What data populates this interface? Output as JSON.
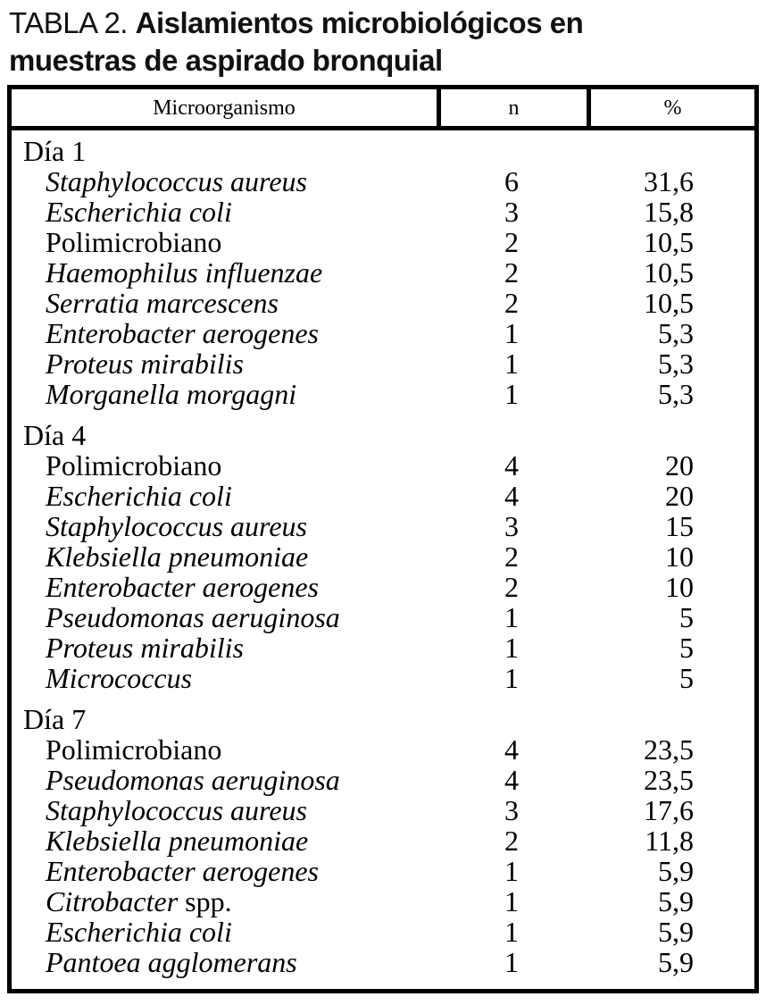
{
  "title": {
    "prefix": "TABLA 2.",
    "bold_line1": "Aislamientos microbiológicos en",
    "bold_line2": "muestras de aspirado bronquial"
  },
  "table": {
    "headers": {
      "microorganism": "Microorganismo",
      "count": "n",
      "percent": "%"
    },
    "sections": [
      {
        "label": "Día 1",
        "rows": [
          {
            "name_italic": "Staphylococcus aureus",
            "name_regular": "",
            "n": "6",
            "pct": "31,6"
          },
          {
            "name_italic": "Escherichia coli",
            "name_regular": "",
            "n": "3",
            "pct": "15,8"
          },
          {
            "name_italic": "",
            "name_regular": "Polimicrobiano",
            "n": "2",
            "pct": "10,5"
          },
          {
            "name_italic": "Haemophilus influenzae",
            "name_regular": "",
            "n": "2",
            "pct": "10,5"
          },
          {
            "name_italic": "Serratia marcescens",
            "name_regular": "",
            "n": "2",
            "pct": "10,5"
          },
          {
            "name_italic": "Enterobacter aerogenes",
            "name_regular": "",
            "n": "1",
            "pct": "5,3"
          },
          {
            "name_italic": "Proteus mirabilis",
            "name_regular": "",
            "n": "1",
            "pct": "5,3"
          },
          {
            "name_italic": "Morganella morgagni",
            "name_regular": "",
            "n": "1",
            "pct": "5,3"
          }
        ]
      },
      {
        "label": "Día 4",
        "rows": [
          {
            "name_italic": "",
            "name_regular": "Polimicrobiano",
            "n": "4",
            "pct": "20"
          },
          {
            "name_italic": "Escherichia coli",
            "name_regular": "",
            "n": "4",
            "pct": "20"
          },
          {
            "name_italic": "Staphylococcus aureus",
            "name_regular": "",
            "n": "3",
            "pct": "15"
          },
          {
            "name_italic": "Klebsiella pneumoniae",
            "name_regular": "",
            "n": "2",
            "pct": "10"
          },
          {
            "name_italic": "Enterobacter aerogenes",
            "name_regular": "",
            "n": "2",
            "pct": "10"
          },
          {
            "name_italic": "Pseudomonas aeruginosa",
            "name_regular": "",
            "n": "1",
            "pct": "5"
          },
          {
            "name_italic": "Proteus mirabilis",
            "name_regular": "",
            "n": "1",
            "pct": "5"
          },
          {
            "name_italic": "Micrococcus",
            "name_regular": "",
            "n": "1",
            "pct": "5"
          }
        ]
      },
      {
        "label": "Día 7",
        "rows": [
          {
            "name_italic": "",
            "name_regular": "Polimicrobiano",
            "n": "4",
            "pct": "23,5"
          },
          {
            "name_italic": "Pseudomonas aeruginosa",
            "name_regular": "",
            "n": "4",
            "pct": "23,5"
          },
          {
            "name_italic": "Staphylococcus aureus",
            "name_regular": "",
            "n": "3",
            "pct": "17,6"
          },
          {
            "name_italic": "Klebsiella pneumoniae",
            "name_regular": "",
            "n": "2",
            "pct": "11,8"
          },
          {
            "name_italic": "Enterobacter aerogenes",
            "name_regular": "",
            "n": "1",
            "pct": "5,9"
          },
          {
            "name_italic": "Citrobacter",
            "name_regular": " spp.",
            "n": "1",
            "pct": "5,9"
          },
          {
            "name_italic": "Escherichia coli",
            "name_regular": "",
            "n": "1",
            "pct": "5,9"
          },
          {
            "name_italic": "Pantoea agglomerans",
            "name_regular": "",
            "n": "1",
            "pct": "5,9"
          }
        ]
      }
    ]
  }
}
